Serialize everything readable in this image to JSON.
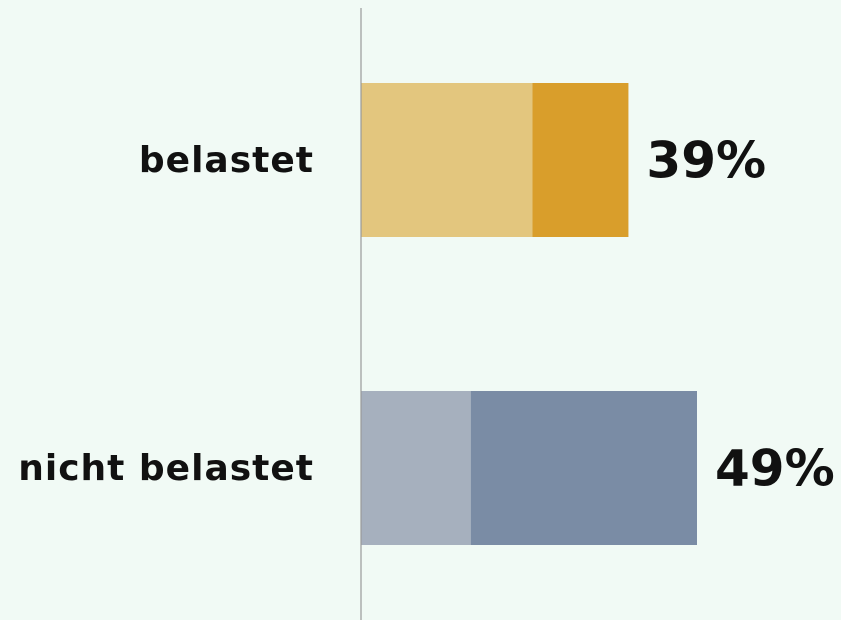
{
  "chart_data": {
    "type": "stacked-barh",
    "categories": [
      "belastet",
      "nicht belastet"
    ],
    "series": [
      {
        "colors": [
          "#e3c67e",
          "#a6b0be"
        ],
        "values": [
          25,
          16
        ]
      },
      {
        "colors": [
          "#d99e2b",
          "#7a8ca5"
        ],
        "values": [
          14,
          33
        ]
      }
    ],
    "totals": [
      39,
      49
    ],
    "total_labels": [
      "39%",
      "49%"
    ],
    "xlim": [
      0,
      70
    ]
  }
}
